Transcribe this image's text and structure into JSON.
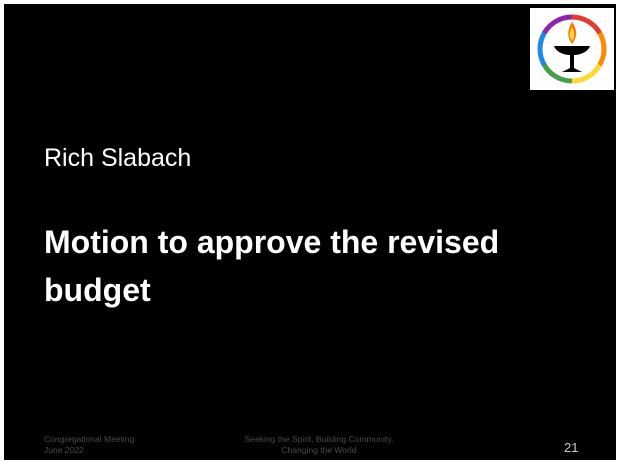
{
  "slide": {
    "presenter": "Rich Slabach",
    "title": "Motion to approve the revised budget",
    "footer_left": [
      "Congregational Meeting",
      "June 2022"
    ],
    "footer_center": [
      "Seeking the Spirit, Building Community,",
      "Changing the World"
    ],
    "page_number": "21"
  }
}
